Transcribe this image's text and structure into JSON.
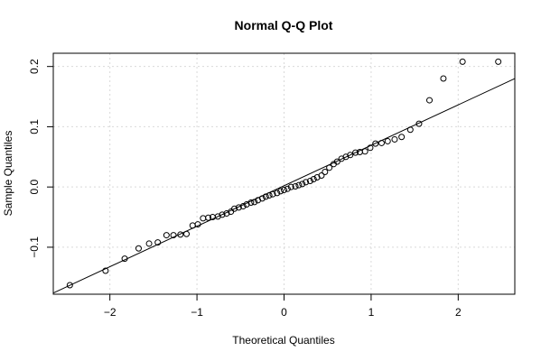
{
  "chart_data": {
    "type": "scatter",
    "title": "Normal Q-Q Plot",
    "xlabel": "Theoretical Quantiles",
    "ylabel": "Sample Quantiles",
    "xlim": [
      -2.65,
      2.65
    ],
    "ylim": [
      -0.178,
      0.222
    ],
    "xticks": [
      -2,
      -1,
      0,
      1,
      2
    ],
    "xtick_labels": [
      "−2",
      "−1",
      "0",
      "1",
      "2"
    ],
    "yticks": [
      -0.1,
      0.0,
      0.1,
      0.2
    ],
    "ytick_labels": [
      "−0.1",
      "0.0",
      "0.1",
      "0.2"
    ],
    "grid": true,
    "reference_line": {
      "x1": -2.65,
      "y1": -0.176,
      "x2": 2.65,
      "y2": 0.18
    },
    "points": [
      {
        "x": -2.46,
        "y": -0.163
      },
      {
        "x": -2.05,
        "y": -0.139
      },
      {
        "x": -1.83,
        "y": -0.119
      },
      {
        "x": -1.67,
        "y": -0.102
      },
      {
        "x": -1.55,
        "y": -0.094
      },
      {
        "x": -1.45,
        "y": -0.092
      },
      {
        "x": -1.35,
        "y": -0.08
      },
      {
        "x": -1.27,
        "y": -0.08
      },
      {
        "x": -1.19,
        "y": -0.079
      },
      {
        "x": -1.12,
        "y": -0.078
      },
      {
        "x": -1.05,
        "y": -0.064
      },
      {
        "x": -0.99,
        "y": -0.062
      },
      {
        "x": -0.93,
        "y": -0.052
      },
      {
        "x": -0.87,
        "y": -0.051
      },
      {
        "x": -0.82,
        "y": -0.05
      },
      {
        "x": -0.76,
        "y": -0.049
      },
      {
        "x": -0.71,
        "y": -0.046
      },
      {
        "x": -0.66,
        "y": -0.044
      },
      {
        "x": -0.61,
        "y": -0.041
      },
      {
        "x": -0.57,
        "y": -0.036
      },
      {
        "x": -0.52,
        "y": -0.034
      },
      {
        "x": -0.47,
        "y": -0.032
      },
      {
        "x": -0.43,
        "y": -0.029
      },
      {
        "x": -0.38,
        "y": -0.026
      },
      {
        "x": -0.34,
        "y": -0.025
      },
      {
        "x": -0.3,
        "y": -0.022
      },
      {
        "x": -0.25,
        "y": -0.019
      },
      {
        "x": -0.21,
        "y": -0.016
      },
      {
        "x": -0.17,
        "y": -0.014
      },
      {
        "x": -0.13,
        "y": -0.012
      },
      {
        "x": -0.08,
        "y": -0.01
      },
      {
        "x": -0.04,
        "y": -0.007
      },
      {
        "x": 0.0,
        "y": -0.005
      },
      {
        "x": 0.04,
        "y": -0.003
      },
      {
        "x": 0.08,
        "y": 0.0
      },
      {
        "x": 0.13,
        "y": 0.001
      },
      {
        "x": 0.17,
        "y": 0.003
      },
      {
        "x": 0.21,
        "y": 0.005
      },
      {
        "x": 0.25,
        "y": 0.008
      },
      {
        "x": 0.3,
        "y": 0.01
      },
      {
        "x": 0.34,
        "y": 0.013
      },
      {
        "x": 0.38,
        "y": 0.016
      },
      {
        "x": 0.43,
        "y": 0.019
      },
      {
        "x": 0.47,
        "y": 0.025
      },
      {
        "x": 0.52,
        "y": 0.032
      },
      {
        "x": 0.57,
        "y": 0.038
      },
      {
        "x": 0.61,
        "y": 0.042
      },
      {
        "x": 0.66,
        "y": 0.047
      },
      {
        "x": 0.71,
        "y": 0.05
      },
      {
        "x": 0.76,
        "y": 0.053
      },
      {
        "x": 0.82,
        "y": 0.057
      },
      {
        "x": 0.87,
        "y": 0.058
      },
      {
        "x": 0.93,
        "y": 0.059
      },
      {
        "x": 0.99,
        "y": 0.065
      },
      {
        "x": 1.05,
        "y": 0.072
      },
      {
        "x": 1.12,
        "y": 0.073
      },
      {
        "x": 1.19,
        "y": 0.076
      },
      {
        "x": 1.27,
        "y": 0.079
      },
      {
        "x": 1.35,
        "y": 0.083
      },
      {
        "x": 1.45,
        "y": 0.095
      },
      {
        "x": 1.55,
        "y": 0.105
      },
      {
        "x": 1.67,
        "y": 0.144
      },
      {
        "x": 1.83,
        "y": 0.18
      },
      {
        "x": 2.05,
        "y": 0.208
      },
      {
        "x": 2.46,
        "y": 0.208
      }
    ]
  }
}
